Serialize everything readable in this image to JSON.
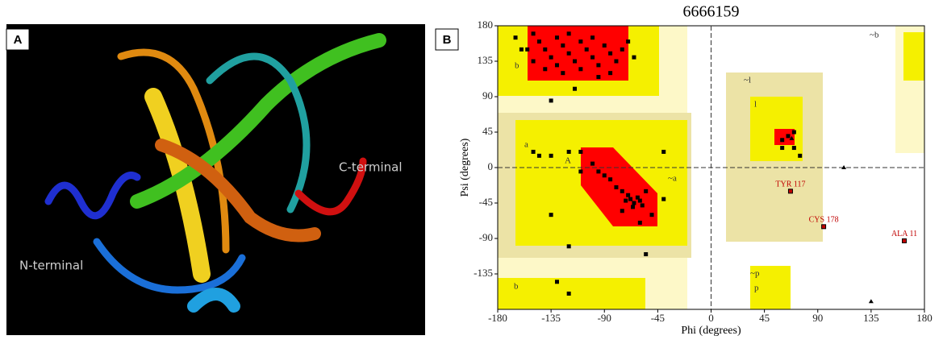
{
  "panels": [
    {
      "label": "A",
      "annotations": [
        "N-terminal",
        "C-terminal"
      ]
    },
    {
      "label": "B"
    }
  ],
  "chart_data": {
    "type": "scatter",
    "title": "6666159",
    "x_label": "Phi (degrees)",
    "y_label": "Psi (degrees)",
    "xlim": [
      -180,
      180
    ],
    "ylim": [
      -180,
      180
    ],
    "xticks": [
      -180,
      -135,
      -90,
      -45,
      0,
      45,
      90,
      135,
      180
    ],
    "yticks": [
      180,
      135,
      90,
      45,
      0,
      -45,
      -90,
      -135
    ],
    "region_labels": [
      "b",
      "A",
      "a",
      "~a",
      "~b",
      "l",
      "~l",
      "~p",
      "p",
      "b"
    ],
    "series": [
      {
        "color": "#000000",
        "marker": "square",
        "x": [
          -165,
          -155,
          -150,
          -145,
          -140,
          -135,
          -130,
          -125,
          -120,
          -115,
          -110,
          -105,
          -100,
          -95,
          -90,
          -85,
          -80,
          -75,
          -70,
          -140,
          -125,
          -110,
          -95,
          -150,
          -160,
          -85,
          -65,
          -120,
          -100,
          -130,
          -115,
          -135,
          -85,
          -80,
          -75,
          -70,
          -68,
          -65,
          -62,
          -60,
          -58,
          -66,
          -72,
          -55,
          -90,
          -95,
          -100,
          -110,
          -120,
          -135,
          -145,
          -40,
          -50,
          -60,
          -75,
          -150,
          -110,
          -40,
          -135,
          -120,
          -130,
          -120,
          -55,
          60,
          65,
          70,
          60,
          70,
          75
        ],
        "values": [
          165,
          150,
          170,
          160,
          150,
          140,
          165,
          155,
          145,
          135,
          160,
          150,
          140,
          130,
          155,
          145,
          135,
          150,
          160,
          125,
          120,
          125,
          115,
          135,
          150,
          120,
          140,
          170,
          165,
          130,
          100,
          85,
          -15,
          -25,
          -30,
          -35,
          -40,
          -45,
          -38,
          -42,
          -48,
          -50,
          -42,
          -30,
          -10,
          -5,
          5,
          20,
          20,
          15,
          15,
          -40,
          -60,
          -70,
          -55,
          20,
          -5,
          20,
          -60,
          -100,
          -145,
          -160,
          -110,
          35,
          40,
          45,
          25,
          25,
          15
        ]
      },
      {
        "color": "#c00000",
        "marker": "square",
        "x": [
          67,
          95,
          163
        ],
        "values": [
          -30,
          -75,
          -93
        ],
        "labels": [
          "TYR 117",
          "CYS 178",
          "ALA 11"
        ]
      },
      {
        "color": "#000000",
        "marker": "triangle",
        "x": [
          112,
          135,
          68
        ],
        "values": [
          0,
          -170,
          37
        ]
      }
    ]
  }
}
